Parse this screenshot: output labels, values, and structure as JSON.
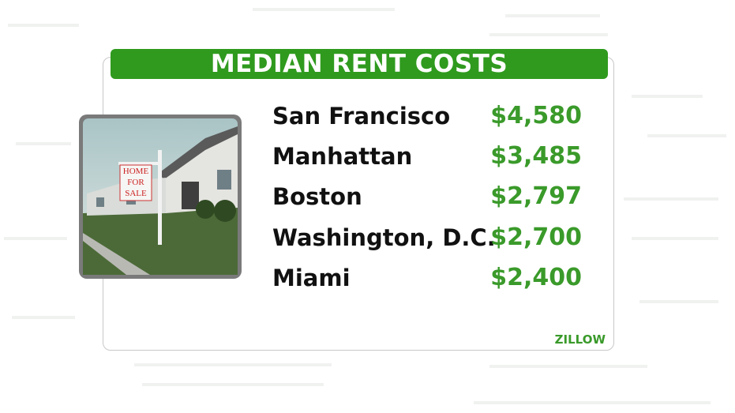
{
  "title": "MEDIAN RENT COSTS",
  "rows": [
    [
      "San Francisco",
      "$4,580"
    ],
    [
      "Manhattan",
      "$3,485"
    ],
    [
      "Boston",
      "$2,797"
    ],
    [
      "Washington, D.C.",
      "$2,700"
    ],
    [
      "Miami",
      "$2,400"
    ]
  ],
  "sign": [
    "HOME",
    "FOR",
    "SALE"
  ],
  "source": "ZILLOW"
}
